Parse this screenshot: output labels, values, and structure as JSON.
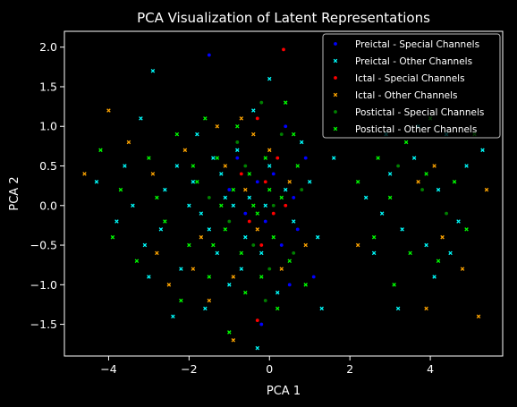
{
  "chart_data": {
    "type": "scatter",
    "title": "PCA Visualization of Latent Representations",
    "xlabel": "PCA 1",
    "ylabel": "PCA 2",
    "xlim": [
      -5.1,
      5.8
    ],
    "ylim": [
      -1.9,
      2.2
    ],
    "xticks": [
      -4,
      -2,
      0,
      2,
      4
    ],
    "xtick_labels": [
      "−4",
      "−2",
      "0",
      "2",
      "4"
    ],
    "yticks": [
      -1.5,
      -1.0,
      -0.5,
      0.0,
      0.5,
      1.0,
      1.5,
      2.0
    ],
    "ytick_labels": [
      "−1.5",
      "−1.0",
      "−0.5",
      "0.0",
      "0.5",
      "1.0",
      "1.5",
      "2.0"
    ],
    "grid": false,
    "legend_position": "top-right",
    "background": "#000000",
    "series": [
      {
        "name": "Preictal - Special Channels",
        "color": "#0000ff",
        "marker": "dot",
        "points": [
          [
            -1.5,
            1.9
          ],
          [
            0.4,
            1.0
          ],
          [
            -0.8,
            0.6
          ],
          [
            -0.3,
            0.3
          ],
          [
            0.6,
            0.1
          ],
          [
            -0.1,
            -0.2
          ],
          [
            0.3,
            -0.5
          ],
          [
            -0.6,
            -0.1
          ],
          [
            0.1,
            0.4
          ],
          [
            0.9,
            0.6
          ],
          [
            1.1,
            -0.9
          ],
          [
            -0.2,
            -1.5
          ],
          [
            0.5,
            -1.0
          ],
          [
            -1.0,
            0.2
          ],
          [
            0.7,
            -0.3
          ]
        ]
      },
      {
        "name": "Preictal - Other Channels",
        "color": "#00ffff",
        "marker": "x",
        "points": [
          [
            -2.9,
            1.7
          ],
          [
            -3.2,
            1.1
          ],
          [
            -3.6,
            0.5
          ],
          [
            -4.3,
            0.3
          ],
          [
            -3.8,
            -0.2
          ],
          [
            -3.1,
            -0.5
          ],
          [
            -2.6,
            0.2
          ],
          [
            -2.2,
            -0.8
          ],
          [
            -1.8,
            0.9
          ],
          [
            -1.5,
            -0.3
          ],
          [
            -1.2,
            0.4
          ],
          [
            -1.0,
            -1.0
          ],
          [
            -0.8,
            0.7
          ],
          [
            -0.6,
            -0.4
          ],
          [
            -0.4,
            1.2
          ],
          [
            -0.2,
            -0.6
          ],
          [
            0.0,
            0.5
          ],
          [
            0.2,
            -1.1
          ],
          [
            0.4,
            0.2
          ],
          [
            0.6,
            -0.2
          ],
          [
            -2.4,
            -1.4
          ],
          [
            -1.6,
            -1.3
          ],
          [
            -0.9,
            0.0
          ],
          [
            -1.3,
            -0.6
          ],
          [
            -0.5,
            0.1
          ],
          [
            -1.9,
            0.3
          ],
          [
            -2.7,
            -0.3
          ],
          [
            -3.4,
            0.0
          ],
          [
            0.0,
            1.6
          ],
          [
            1.0,
            0.3
          ],
          [
            1.2,
            -0.4
          ],
          [
            1.6,
            0.6
          ],
          [
            1.3,
            -1.3
          ],
          [
            2.4,
            0.1
          ],
          [
            2.8,
            -0.1
          ],
          [
            3.0,
            0.4
          ],
          [
            3.3,
            -0.3
          ],
          [
            3.6,
            0.6
          ],
          [
            3.9,
            -0.5
          ],
          [
            4.2,
            0.2
          ],
          [
            4.4,
            0.9
          ],
          [
            4.7,
            -0.2
          ],
          [
            4.9,
            0.5
          ],
          [
            5.3,
            0.7
          ],
          [
            4.1,
            -0.9
          ],
          [
            3.2,
            -1.3
          ],
          [
            2.9,
            0.9
          ],
          [
            3.7,
            1.0
          ],
          [
            4.5,
            -0.6
          ],
          [
            2.6,
            -0.6
          ],
          [
            -0.3,
            -1.8
          ],
          [
            -2.0,
            0.0
          ],
          [
            -1.4,
            0.6
          ],
          [
            -0.7,
            -0.8
          ],
          [
            -1.1,
            0.1
          ],
          [
            -0.1,
            0.0
          ],
          [
            0.8,
            0.8
          ],
          [
            -2.3,
            0.5
          ],
          [
            -3.0,
            -0.9
          ],
          [
            -1.7,
            -0.1
          ]
        ]
      },
      {
        "name": "Ictal - Special Channels",
        "color": "#ff0000",
        "marker": "dot",
        "points": [
          [
            0.35,
            1.97
          ],
          [
            -0.3,
            1.1
          ],
          [
            -0.1,
            0.3
          ],
          [
            0.1,
            -0.1
          ],
          [
            -0.5,
            -0.2
          ],
          [
            -0.3,
            -1.45
          ],
          [
            0.2,
            0.6
          ],
          [
            -0.2,
            -0.5
          ],
          [
            0.4,
            0.0
          ],
          [
            -0.7,
            0.4
          ]
        ]
      },
      {
        "name": "Ictal - Other Channels",
        "color": "#ffa500",
        "marker": "x",
        "points": [
          [
            -4.0,
            1.2
          ],
          [
            -4.6,
            0.4
          ],
          [
            -3.5,
            0.8
          ],
          [
            -2.8,
            -0.6
          ],
          [
            -2.1,
            0.7
          ],
          [
            -1.7,
            -0.4
          ],
          [
            -1.3,
            1.0
          ],
          [
            -0.9,
            -0.9
          ],
          [
            -0.6,
            0.2
          ],
          [
            -0.3,
            -0.3
          ],
          [
            0.0,
            0.7
          ],
          [
            0.3,
            -0.8
          ],
          [
            -0.9,
            -1.7
          ],
          [
            -1.1,
            0.5
          ],
          [
            -2.5,
            -1.0
          ],
          [
            -1.5,
            -1.2
          ],
          [
            3.7,
            0.3
          ],
          [
            4.3,
            -0.4
          ],
          [
            5.2,
            -1.4
          ],
          [
            3.9,
            -1.3
          ],
          [
            4.1,
            0.5
          ],
          [
            2.2,
            -0.5
          ],
          [
            5.4,
            0.2
          ],
          [
            -0.4,
            0.9
          ],
          [
            0.5,
            0.3
          ],
          [
            -1.9,
            -0.8
          ],
          [
            -0.7,
            1.1
          ],
          [
            0.9,
            -0.5
          ],
          [
            -2.9,
            0.4
          ],
          [
            4.8,
            -0.8
          ]
        ]
      },
      {
        "name": "Postictal - Special Channels",
        "color": "#008000",
        "marker": "dot",
        "points": [
          [
            -0.2,
            1.3
          ],
          [
            -0.6,
            0.5
          ],
          [
            0.1,
            0.0
          ],
          [
            -0.4,
            -0.5
          ],
          [
            0.3,
            0.9
          ],
          [
            -1.0,
            -0.2
          ],
          [
            0.6,
            -0.6
          ],
          [
            -0.1,
            -1.2
          ],
          [
            0.8,
            0.2
          ],
          [
            -0.8,
            0.8
          ],
          [
            3.8,
            0.2
          ],
          [
            4.4,
            -0.1
          ],
          [
            3.2,
            0.5
          ],
          [
            -1.5,
            0.1
          ],
          [
            0.0,
            -0.8
          ]
        ]
      },
      {
        "name": "Postictal - Other Channels",
        "color": "#00ff00",
        "marker": "x",
        "points": [
          [
            -4.2,
            0.7
          ],
          [
            -3.7,
            0.2
          ],
          [
            -3.3,
            -0.7
          ],
          [
            -3.0,
            0.6
          ],
          [
            -2.6,
            -0.2
          ],
          [
            -2.3,
            0.9
          ],
          [
            -2.0,
            -0.5
          ],
          [
            -1.8,
            0.3
          ],
          [
            -1.5,
            -0.9
          ],
          [
            -1.3,
            0.6
          ],
          [
            -1.1,
            -0.3
          ],
          [
            -0.9,
            0.2
          ],
          [
            -0.7,
            -0.6
          ],
          [
            -0.5,
            0.4
          ],
          [
            -0.3,
            -0.1
          ],
          [
            -0.1,
            0.6
          ],
          [
            0.1,
            -0.4
          ],
          [
            0.3,
            0.1
          ],
          [
            0.5,
            -0.7
          ],
          [
            0.7,
            0.5
          ],
          [
            -2.2,
            -1.2
          ],
          [
            -1.0,
            -1.6
          ],
          [
            -0.6,
            -1.1
          ],
          [
            0.2,
            -1.3
          ],
          [
            0.9,
            -1.0
          ],
          [
            -1.6,
            1.1
          ],
          [
            -0.8,
            1.0
          ],
          [
            0.4,
            1.3
          ],
          [
            -0.4,
            0.0
          ],
          [
            -1.2,
            0.0
          ],
          [
            2.2,
            0.3
          ],
          [
            2.6,
            -0.4
          ],
          [
            3.0,
            0.1
          ],
          [
            3.4,
            0.8
          ],
          [
            3.5,
            -0.6
          ],
          [
            3.9,
            0.4
          ],
          [
            4.2,
            -0.7
          ],
          [
            4.6,
            0.3
          ],
          [
            4.9,
            -0.3
          ],
          [
            5.1,
            0.9
          ],
          [
            3.1,
            -1.0
          ],
          [
            4.0,
            1.1
          ],
          [
            2.7,
            0.6
          ],
          [
            -2.8,
            0.1
          ],
          [
            -3.9,
            -0.4
          ],
          [
            -1.9,
            0.5
          ],
          [
            -0.2,
            -0.9
          ],
          [
            0.6,
            0.9
          ],
          [
            -1.4,
            -0.5
          ],
          [
            0.0,
            0.2
          ]
        ]
      }
    ]
  }
}
